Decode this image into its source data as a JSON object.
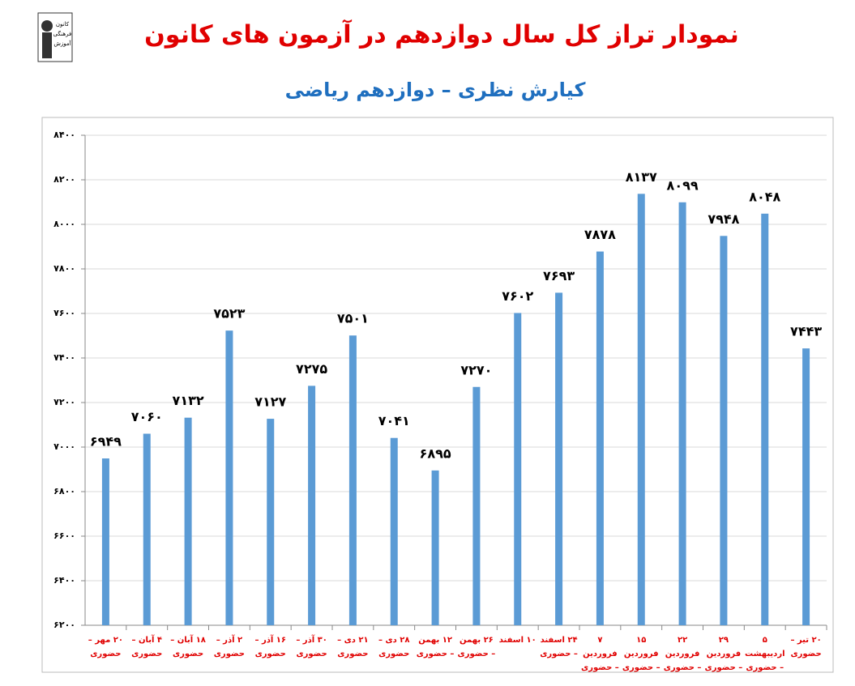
{
  "chart_data": {
    "type": "bar",
    "title": "نمودار تراز کل سال دوازدهم در آزمون های کانون",
    "subtitle": "کیارش نظری – دوازدهم ریاضی",
    "logo": [
      "کانون",
      "فرهنگی",
      "آموزش"
    ],
    "categories": [
      "۲۰ مهر – حضوری",
      "۴ آبان – حضوری",
      "۱۸ آبان – حضوری",
      "۲ آذر – حضوری",
      "۱۶ آذر – حضوری",
      "۳۰ آذر – حضوری",
      "۲۱ دی – حضوری",
      "۲۸ دی – حضوری",
      "۱۲ بهمن – حضوری",
      "۲۶ بهمن – حضوری",
      "۱۰ اسفند",
      "۲۴ اسفند – حضوری",
      "۷ فروردین – حضوری",
      "۱۵ فروردین – حضوری",
      "۲۲ فروردین – حضوری",
      "۲۹ فروردین – حضوری",
      "۵ اردیبهشت – حضوری",
      "۲۰ تیر – حضوری"
    ],
    "values": [
      6949,
      7060,
      7132,
      7523,
      7127,
      7275,
      7501,
      7041,
      6895,
      7270,
      7602,
      7693,
      7878,
      8137,
      8099,
      7948,
      8048,
      7443
    ],
    "value_labels": [
      "۶۹۴۹",
      "۷۰۶۰",
      "۷۱۳۲",
      "۷۵۲۳",
      "۷۱۲۷",
      "۷۲۷۵",
      "۷۵۰۱",
      "۷۰۴۱",
      "۶۸۹۵",
      "۷۲۷۰",
      "۷۶۰۲",
      "۷۶۹۳",
      "۷۸۷۸",
      "۸۱۳۷",
      "۸۰۹۹",
      "۷۹۴۸",
      "۸۰۴۸",
      "۷۴۴۳"
    ],
    "color": "#5b9bd5",
    "ylim": [
      6200,
      8400
    ],
    "yticks": [
      {
        "value": 6200,
        "label": "۶۲۰۰"
      },
      {
        "value": 6400,
        "label": "۶۴۰۰"
      },
      {
        "value": 6600,
        "label": "۶۶۰۰"
      },
      {
        "value": 6800,
        "label": "۶۸۰۰"
      },
      {
        "value": 7000,
        "label": "۷۰۰۰"
      },
      {
        "value": 7200,
        "label": "۷۲۰۰"
      },
      {
        "value": 7400,
        "label": "۷۴۰۰"
      },
      {
        "value": 7600,
        "label": "۷۶۰۰"
      },
      {
        "value": 7800,
        "label": "۷۸۰۰"
      },
      {
        "value": 8000,
        "label": "۸۰۰۰"
      },
      {
        "value": 8200,
        "label": "۸۲۰۰"
      },
      {
        "value": 8400,
        "label": "۸۴۰۰"
      }
    ],
    "grid": true
  }
}
